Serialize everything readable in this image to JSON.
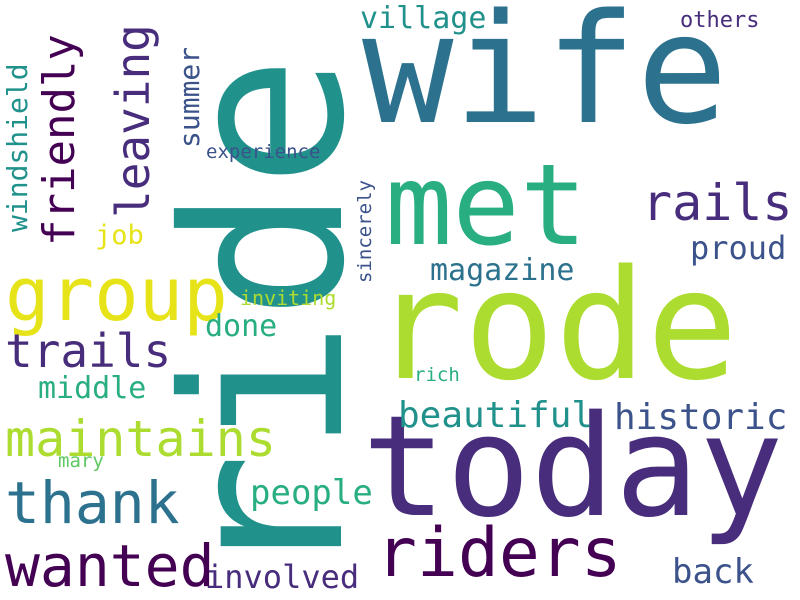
{
  "words": {
    "ride": "ride",
    "rode": "rode",
    "today": "today",
    "wife": "wife",
    "met": "met",
    "riders": "riders",
    "group": "group",
    "leaving": "leaving",
    "friendly": "friendly",
    "rails": "rails",
    "maintains": "maintains",
    "thank": "thank",
    "wanted": "wanted",
    "trails": "trails",
    "historic": "historic",
    "beautiful": "beautiful",
    "magazine": "magazine",
    "proud": "proud",
    "people": "people",
    "involved": "involved",
    "back": "back",
    "done": "done",
    "middle": "middle",
    "village": "village",
    "summer": "summer",
    "windshield": "windshield",
    "job": "job",
    "experience": "experience",
    "others": "others",
    "inviting": "inviting",
    "sincerely": "sincerely",
    "rich": "rich",
    "mary": "mary"
  },
  "colors": {
    "dark_purple": "#440154",
    "indigo": "#472d7b",
    "blue_purple": "#3b528b",
    "steel_blue": "#2c728e",
    "teal": "#21918c",
    "sea_green": "#28ae80",
    "green": "#5ec962",
    "lime": "#addc30",
    "yellow": "#e6e419"
  }
}
